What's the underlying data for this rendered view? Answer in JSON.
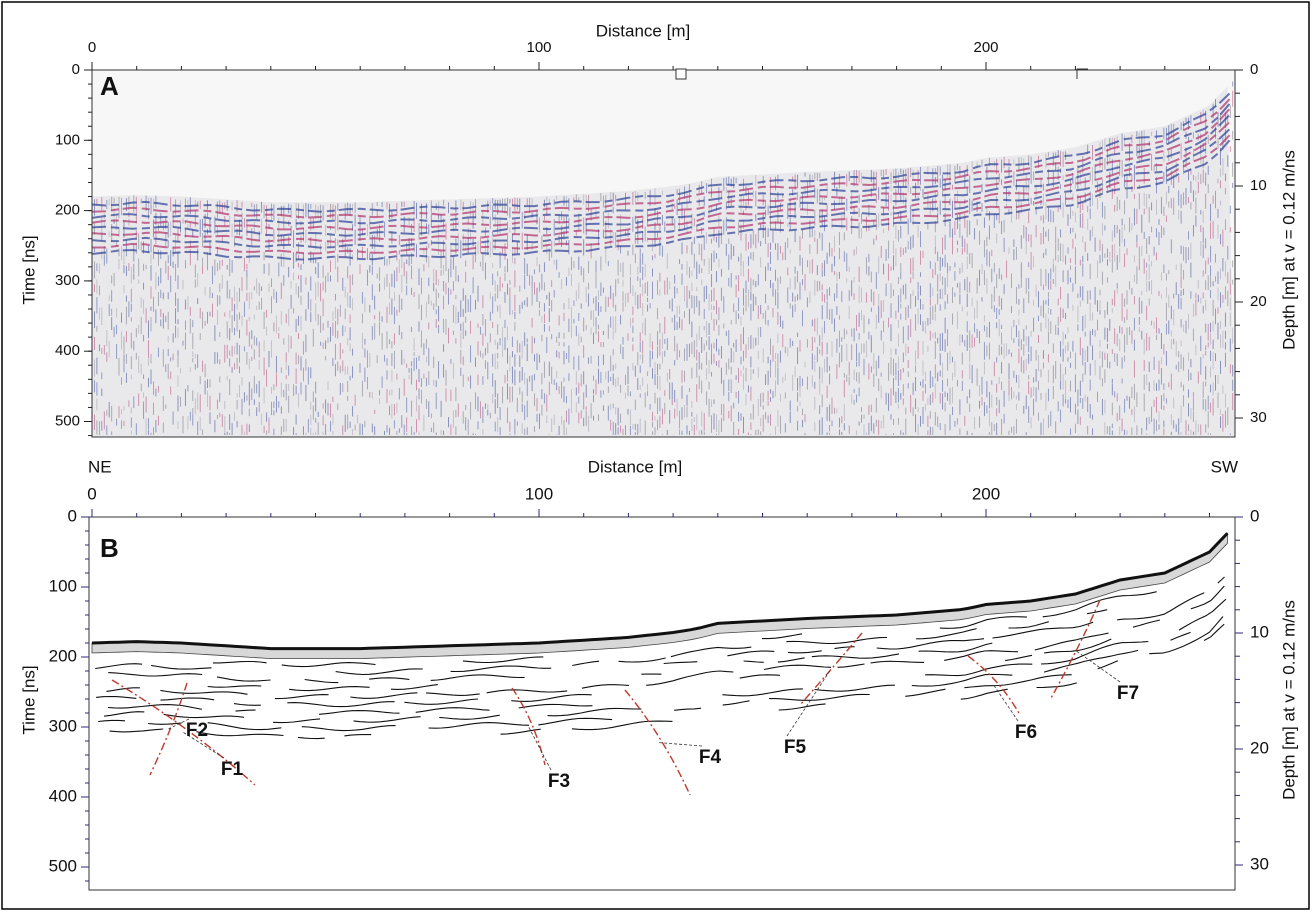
{
  "panels": [
    {
      "label": "A",
      "x_title": "Distance [m]",
      "xticks": [
        0,
        100,
        200
      ],
      "y_title": "Time [ns]",
      "yticks": [
        0,
        100,
        200,
        300,
        400,
        500
      ],
      "y2_title": "Depth [m] at v = 0.12 m/ns",
      "y2ticks": [
        0,
        10,
        20,
        30
      ]
    },
    {
      "label": "B",
      "x_title": "Distance [m]",
      "left_end": "NE",
      "right_end": "SW",
      "xticks": [
        0,
        100,
        200
      ],
      "y_title": "Time [ns]",
      "yticks": [
        0,
        100,
        200,
        300,
        400,
        500
      ],
      "y2_title": "Depth [m] at v = 0.12 m/ns",
      "y2ticks": [
        0,
        10,
        20,
        30
      ],
      "faults": [
        "F1",
        "F2",
        "F3",
        "F4",
        "F5",
        "F6",
        "F7"
      ]
    }
  ]
}
